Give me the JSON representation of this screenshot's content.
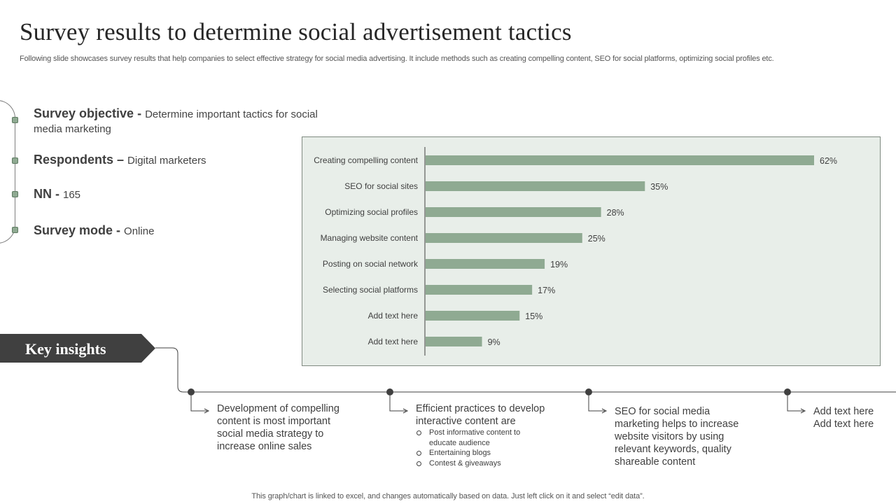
{
  "header": {
    "title": "Survey results to determine social advertisement tactics",
    "subtitle": "Following slide showcases survey results that help companies to select effective strategy for social media advertising. It include methods such as creating compelling content, SEO for social platforms, optimizing social profiles etc."
  },
  "survey": {
    "objective_label": "Survey objective - ",
    "objective_value": "Determine important tactics for social media marketing",
    "respondents_label": "Respondents – ",
    "respondents_value": "Digital marketers",
    "nn_label": "NN - ",
    "nn_value": "165",
    "mode_label": "Survey mode - ",
    "mode_value": "Online"
  },
  "chart_data": {
    "type": "bar",
    "orientation": "horizontal",
    "categories": [
      "Creating compelling content",
      "SEO for social sites",
      "Optimizing social profiles",
      "Managing website content",
      "Posting on social network",
      "Selecting social platforms",
      "Add text here",
      "Add text here"
    ],
    "values": [
      62,
      35,
      28,
      25,
      19,
      17,
      15,
      9
    ],
    "value_labels": [
      "62%",
      "35%",
      "28%",
      "25%",
      "19%",
      "17%",
      "15%",
      "9%"
    ],
    "unit": "%",
    "xlim": [
      0,
      70
    ],
    "grid": false,
    "legend": "none",
    "bar_color": "#8faa92",
    "background_color": "#e8eee9"
  },
  "key_insights": {
    "title": "Key insights",
    "items": [
      {
        "text": "Development of compelling content is most important social media strategy to increase online sales",
        "bullets": []
      },
      {
        "text": "Efficient practices to develop interactive content are",
        "bullets": [
          "Post informative content to educate audience",
          "Entertaining blogs",
          "Contest & giveaways"
        ]
      },
      {
        "text": "SEO for social media marketing helps to increase website visitors by using relevant keywords, quality shareable content",
        "bullets": []
      },
      {
        "text": "Add text here Add text here",
        "bullets": []
      }
    ]
  },
  "footer": {
    "note": "This graph/chart is linked to excel, and changes automatically based on data. Just left click on it and select “edit data”."
  },
  "colors": {
    "accent": "#8faa92",
    "banner": "#404040",
    "text": "#404040"
  }
}
